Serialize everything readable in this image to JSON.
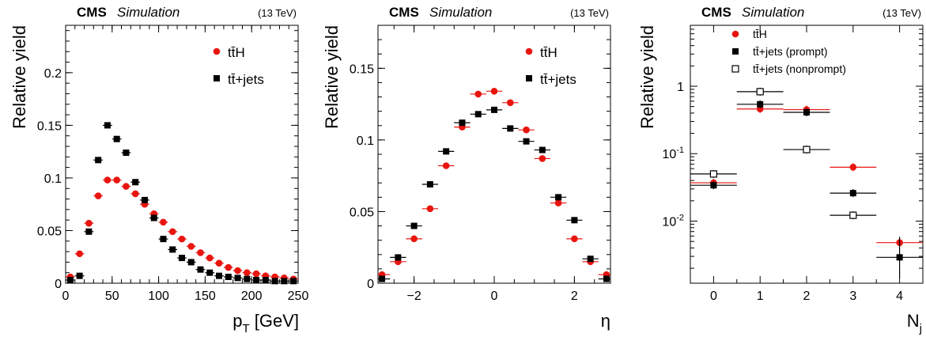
{
  "colors": {
    "tth": "#e8150f",
    "ttjets": "#000000",
    "nonprompt_fill": "#ffffff"
  },
  "chart_data": [
    {
      "type": "scatter",
      "header": {
        "cms": "CMS",
        "sim": "Simulation",
        "energy": "(13 TeV)"
      },
      "xlabel": "p_T [GeV]",
      "ylabel": "Relative yield",
      "xlim": [
        0,
        250
      ],
      "ylim": [
        0,
        0.245
      ],
      "xticks": [
        "0",
        "50",
        "100",
        "150",
        "200",
        "250"
      ],
      "yticks": [
        "0",
        "0.05",
        "0.1",
        "0.15",
        "0.2"
      ],
      "legend": [
        "tt̄H",
        "tt̄+jets"
      ],
      "bin_width": 10,
      "series": [
        {
          "name": "tt̄H",
          "marker": "circle",
          "x": [
            5,
            15,
            25,
            35,
            45,
            55,
            65,
            75,
            85,
            95,
            105,
            115,
            125,
            135,
            145,
            155,
            165,
            175,
            185,
            195,
            205,
            215,
            225,
            235,
            245
          ],
          "values": [
            0.006,
            0.028,
            0.057,
            0.083,
            0.098,
            0.098,
            0.092,
            0.085,
            0.075,
            0.066,
            0.058,
            0.049,
            0.042,
            0.035,
            0.029,
            0.024,
            0.019,
            0.015,
            0.012,
            0.01,
            0.009,
            0.007,
            0.006,
            0.005,
            0.004
          ]
        },
        {
          "name": "tt̄+jets",
          "marker": "square",
          "x": [
            5,
            15,
            25,
            35,
            45,
            55,
            65,
            75,
            85,
            95,
            105,
            115,
            125,
            135,
            145,
            155,
            165,
            175,
            185,
            195,
            205,
            215,
            225,
            235,
            245
          ],
          "values": [
            0.003,
            0.007,
            0.049,
            0.117,
            0.15,
            0.137,
            0.124,
            0.096,
            0.079,
            0.062,
            0.042,
            0.032,
            0.024,
            0.02,
            0.013,
            0.01,
            0.007,
            0.006,
            0.005,
            0.004,
            0.003,
            0.003,
            0.002,
            0.002,
            0.002
          ]
        }
      ]
    },
    {
      "type": "scatter",
      "header": {
        "cms": "CMS",
        "sim": "Simulation",
        "energy": "(13 TeV)"
      },
      "xlabel": "η",
      "ylabel": "Relative yield",
      "xlim": [
        -2.9,
        2.9
      ],
      "ylim": [
        0,
        0.18
      ],
      "xticks": [
        "−2",
        "0",
        "2"
      ],
      "yticks": [
        "0",
        "0.05",
        "0.1",
        "0.15"
      ],
      "legend": [
        "tt̄H",
        "tt̄+jets"
      ],
      "bin_width": 0.4,
      "series": [
        {
          "name": "tt̄H",
          "marker": "circle",
          "x": [
            -2.8,
            -2.4,
            -2.0,
            -1.6,
            -1.2,
            -0.8,
            -0.4,
            0.0,
            0.4,
            0.8,
            1.2,
            1.6,
            2.0,
            2.4,
            2.8
          ],
          "values": [
            0.006,
            0.015,
            0.031,
            0.052,
            0.082,
            0.109,
            0.132,
            0.134,
            0.126,
            0.107,
            0.087,
            0.056,
            0.031,
            0.015,
            0.006
          ]
        },
        {
          "name": "tt̄+jets",
          "marker": "square",
          "x": [
            -2.8,
            -2.4,
            -2.0,
            -1.6,
            -1.2,
            -0.8,
            -0.4,
            0.0,
            0.4,
            0.8,
            1.2,
            1.6,
            2.0,
            2.4,
            2.8
          ],
          "values": [
            0.003,
            0.018,
            0.04,
            0.069,
            0.092,
            0.112,
            0.118,
            0.121,
            0.108,
            0.099,
            0.093,
            0.06,
            0.044,
            0.017,
            0.003
          ]
        }
      ]
    },
    {
      "type": "scatter",
      "header": {
        "cms": "CMS",
        "sim": "Simulation",
        "energy": "(13 TeV)"
      },
      "xlabel": "N_j",
      "ylabel": "Relative yield",
      "yscale": "log",
      "xlim": [
        -0.5,
        4.5
      ],
      "ylim": [
        0.0012,
        8
      ],
      "xticks": [
        "0",
        "1",
        "2",
        "3",
        "4"
      ],
      "yticks": [
        {
          "base": "10",
          "exp": "-2"
        },
        {
          "base": "10",
          "exp": "-1"
        },
        {
          "base": "1",
          "exp": ""
        }
      ],
      "legend": [
        "tt̄H",
        "tt̄+jets (prompt)",
        "tt̄+jets (nonprompt)"
      ],
      "bin_width": 1,
      "series": [
        {
          "name": "tt̄H",
          "marker": "circle",
          "x": [
            0,
            1,
            2,
            3,
            4
          ],
          "values": [
            0.037,
            0.46,
            0.45,
            0.063,
            0.0048
          ]
        },
        {
          "name": "tt̄+jets (prompt)",
          "marker": "square",
          "x": [
            0,
            1,
            2,
            3,
            4
          ],
          "values": [
            0.034,
            0.54,
            0.41,
            0.026,
            0.0029
          ]
        },
        {
          "name": "tt̄+jets (nonprompt)",
          "marker": "open-square",
          "x": [
            0,
            1,
            2,
            3
          ],
          "values": [
            0.05,
            0.83,
            0.115,
            0.0122
          ]
        }
      ]
    }
  ]
}
